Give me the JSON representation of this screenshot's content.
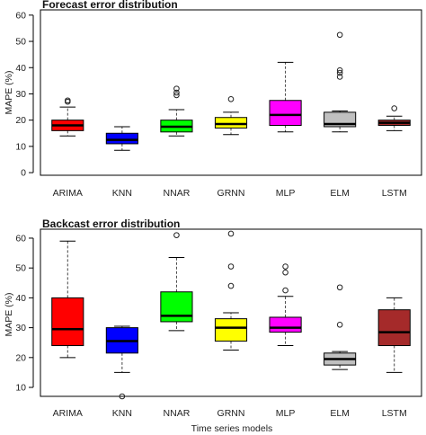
{
  "chart_data": [
    {
      "type": "box",
      "title": "Forecast error distribution",
      "xlabel": "",
      "ylabel": "MAPE (%)",
      "ylim": [
        -1,
        62
      ],
      "yticks": [
        0,
        10,
        20,
        30,
        40,
        50,
        60
      ],
      "grid": false,
      "categories": [
        "ARIMA",
        "KNN",
        "NNAR",
        "GRNN",
        "MLP",
        "ELM",
        "LSTM"
      ],
      "colors": [
        "#ff0000",
        "#0000ff",
        "#00ff00",
        "#ffff00",
        "#ff00ff",
        "#c0c0c0",
        "#a52a2a"
      ],
      "boxes": [
        {
          "min": 14,
          "q1": 16,
          "median": 18,
          "q3": 20,
          "max": 25,
          "outliers": [
            27,
            27.5
          ]
        },
        {
          "min": 8.5,
          "q1": 11,
          "median": 12.5,
          "q3": 15,
          "max": 17.5,
          "outliers": []
        },
        {
          "min": 14,
          "q1": 15.5,
          "median": 17.5,
          "q3": 20,
          "max": 24,
          "outliers": [
            29.5,
            30.5,
            32
          ]
        },
        {
          "min": 14.5,
          "q1": 17,
          "median": 18.5,
          "q3": 21,
          "max": 23,
          "outliers": [
            28
          ]
        },
        {
          "min": 15.5,
          "q1": 18,
          "median": 22,
          "q3": 27.5,
          "max": 42,
          "outliers": []
        },
        {
          "min": 15.5,
          "q1": 17.5,
          "median": 18.5,
          "q3": 23,
          "max": 23.5,
          "outliers": [
            36.5,
            38,
            39,
            52.5
          ]
        },
        {
          "min": 16,
          "q1": 18,
          "median": 19,
          "q3": 20,
          "max": 21.5,
          "outliers": [
            24.5
          ]
        }
      ]
    },
    {
      "type": "box",
      "title": "Backcast error distribution",
      "xlabel": "Time series models",
      "ylabel": "MAPE (%)",
      "ylim": [
        7,
        63
      ],
      "yticks": [
        10,
        20,
        30,
        40,
        50,
        60
      ],
      "grid": false,
      "categories": [
        "ARIMA",
        "KNN",
        "NNAR",
        "GRNN",
        "MLP",
        "ELM",
        "LSTM"
      ],
      "colors": [
        "#ff0000",
        "#0000ff",
        "#00ff00",
        "#ffff00",
        "#ff00ff",
        "#c0c0c0",
        "#a52a2a"
      ],
      "boxes": [
        {
          "min": 20,
          "q1": 24,
          "median": 29.5,
          "q3": 40,
          "max": 59,
          "outliers": []
        },
        {
          "min": 15,
          "q1": 21.5,
          "median": 25.5,
          "q3": 30,
          "max": 30.5,
          "outliers": [
            7
          ]
        },
        {
          "min": 29,
          "q1": 32,
          "median": 34,
          "q3": 42,
          "max": 53.5,
          "outliers": [
            61
          ]
        },
        {
          "min": 22.5,
          "q1": 25.5,
          "median": 30,
          "q3": 33,
          "max": 35,
          "outliers": [
            44,
            50.5,
            61.5
          ]
        },
        {
          "min": 24,
          "q1": 28.5,
          "median": 30,
          "q3": 33.5,
          "max": 40.5,
          "outliers": [
            42.5,
            48.5,
            50.5
          ]
        },
        {
          "min": 16,
          "q1": 17.5,
          "median": 19.5,
          "q3": 21.5,
          "max": 22,
          "outliers": [
            31,
            43.5
          ]
        },
        {
          "min": 15,
          "q1": 24,
          "median": 28.5,
          "q3": 36,
          "max": 40,
          "outliers": []
        }
      ]
    }
  ]
}
